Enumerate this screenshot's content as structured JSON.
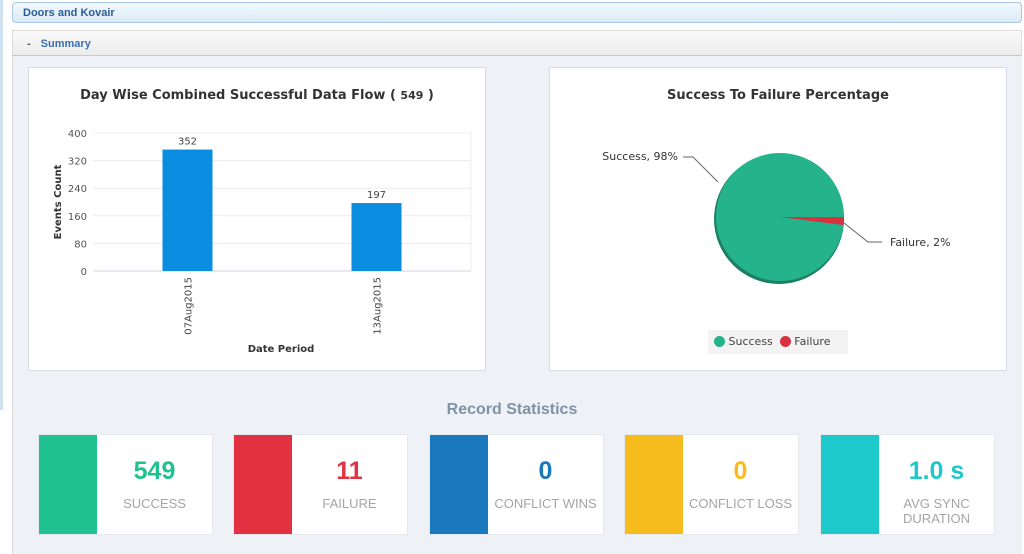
{
  "header": {
    "title": "Doors and Kovair"
  },
  "summary": {
    "toggle": "-",
    "label": "Summary"
  },
  "bar_panel": {
    "title": "Day Wise Combined Successful Data Flow (",
    "total": "549",
    "close": ")"
  },
  "pie_panel": {
    "title": "Success To Failure Percentage"
  },
  "chart_data": [
    {
      "type": "bar",
      "title": "Day Wise Combined Successful Data Flow ( 549 )",
      "xlabel": "Date Period",
      "ylabel": "Events Count",
      "categories": [
        "07Aug2015",
        "13Aug2015"
      ],
      "values": [
        352,
        197
      ],
      "data_labels": [
        "352",
        "197"
      ],
      "ylim": [
        0,
        400
      ],
      "yticks": [
        "0",
        "80",
        "160",
        "240",
        "320",
        "400"
      ],
      "grid": true,
      "color": "#0a8de0"
    },
    {
      "type": "pie",
      "title": "Success To Failure Percentage",
      "slices": [
        {
          "name": "Success",
          "value": 98,
          "label": "Success, 98%",
          "color": "#25b38b"
        },
        {
          "name": "Failure",
          "value": 2,
          "label": "Failure, 2%",
          "color": "#d8323f"
        }
      ],
      "legend": [
        "Success",
        "Failure"
      ],
      "legend_placement": "bottom"
    }
  ],
  "stats": {
    "title": "Record Statistics",
    "cards": [
      {
        "value": "549",
        "label": "SUCCESS",
        "color": "#20c290"
      },
      {
        "value": "11",
        "label": "FAILURE",
        "color": "#e23242"
      },
      {
        "value": "0",
        "label": "CONFLICT WINS",
        "color": "#1a78bc"
      },
      {
        "value": "0",
        "label": "CONFLICT LOSS",
        "color": "#f6bc1d"
      },
      {
        "value": "1.0 s",
        "label": "AVG SYNC DURATION",
        "color": "#1ec8cb"
      }
    ]
  }
}
